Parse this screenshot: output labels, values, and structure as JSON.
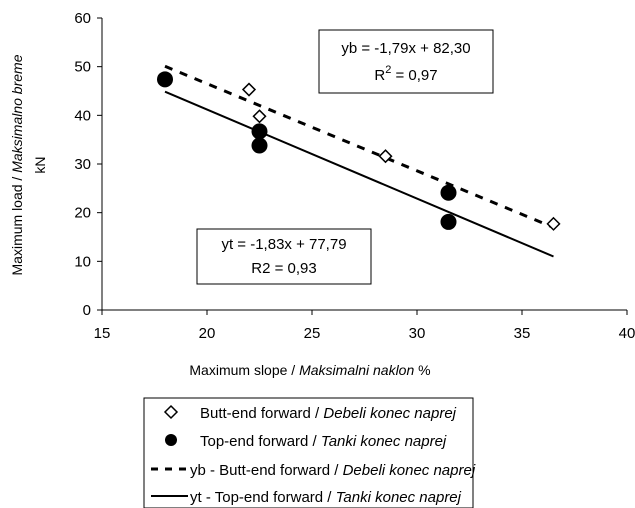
{
  "chart_data": {
    "type": "scatter",
    "xlabel": {
      "en": "Maximum slope / ",
      "local": "Maksimalni naklon",
      "unit": " %"
    },
    "ylabel": {
      "en": "Maximum load / ",
      "local": "Maksimalno breme",
      "unit": "kN"
    },
    "xlim": [
      15,
      40
    ],
    "ylim": [
      0,
      60
    ],
    "xticks": [
      15,
      20,
      25,
      30,
      35,
      40
    ],
    "yticks": [
      0,
      10,
      20,
      30,
      40,
      50,
      60
    ],
    "grid": false,
    "series": [
      {
        "name": "Butt-end forward / Debeli konec naprej",
        "marker": "open-diamond",
        "points": [
          {
            "x": 22.0,
            "y": 45.3
          },
          {
            "x": 22.5,
            "y": 39.8
          },
          {
            "x": 28.5,
            "y": 31.6
          },
          {
            "x": 36.5,
            "y": 17.7
          }
        ]
      },
      {
        "name": "Top-end forward / Tanki konec naprej",
        "marker": "filled-circle",
        "points": [
          {
            "x": 18.0,
            "y": 47.4
          },
          {
            "x": 22.5,
            "y": 36.7
          },
          {
            "x": 22.5,
            "y": 33.8
          },
          {
            "x": 31.5,
            "y": 24.1
          },
          {
            "x": 31.5,
            "y": 18.1
          }
        ]
      }
    ],
    "trendlines": [
      {
        "name": "yb - Butt-end forward / Debeli konec naprej",
        "style": "dashed",
        "slope": -1.79,
        "intercept": 82.3,
        "x_range": [
          18.0,
          36.5
        ]
      },
      {
        "name": "yt - Top-end forward / Tanki konec naprej",
        "style": "solid",
        "slope": -1.83,
        "intercept": 77.79,
        "x_range": [
          18.0,
          36.5
        ]
      }
    ],
    "annotations": {
      "yb_eq": "yb = -1,79x + 82,30",
      "yb_r2_prefix": "R",
      "yb_r2_sup": "2",
      "yb_r2_value": " = 0,97",
      "yt_eq": "yt = -1,83x + 77,79",
      "yt_r2": "R2 = 0,93"
    },
    "legend": {
      "position": "bottom",
      "items": [
        {
          "en": "Butt-end forward / ",
          "local": "Debeli konec naprej"
        },
        {
          "en": "Top-end forward / ",
          "local": "Tanki konec naprej"
        },
        {
          "en": "yb - Butt-end forward / ",
          "local": "Debeli konec naprej"
        },
        {
          "en": "yt - Top-end forward / ",
          "local": "Tanki konec naprej"
        }
      ]
    }
  }
}
